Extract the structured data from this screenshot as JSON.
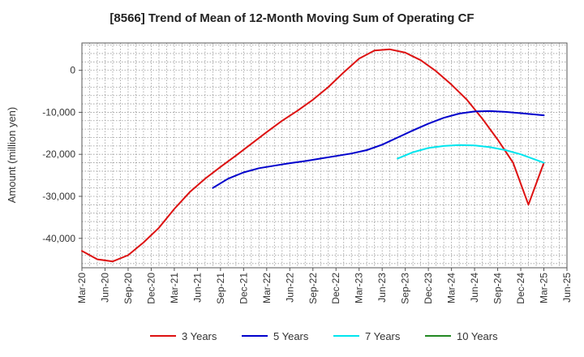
{
  "chart_data": {
    "type": "line",
    "title": "[8566]  Trend of Mean of 12-Month Moving Sum of Operating CF",
    "xlabel": "",
    "ylabel": "Amount (million yen)",
    "ylim": [
      -47000,
      6500
    ],
    "yticks": [
      0,
      -10000,
      -20000,
      -30000,
      -40000
    ],
    "ytick_labels": [
      "0",
      "-10,000",
      "-20,000",
      "-30,000",
      "-40,000"
    ],
    "xlim": [
      "Mar-20",
      "Jun-25"
    ],
    "x_tick_labels": [
      "Mar-20",
      "Jun-20",
      "Sep-20",
      "Dec-20",
      "Mar-21",
      "Jun-21",
      "Sep-21",
      "Dec-21",
      "Mar-22",
      "Jun-22",
      "Sep-22",
      "Dec-22",
      "Mar-23",
      "Jun-23",
      "Sep-23",
      "Dec-23",
      "Mar-24",
      "Jun-24",
      "Sep-24",
      "Dec-24",
      "Mar-25",
      "Jun-25"
    ],
    "grid": true,
    "legend_position": "bottom",
    "series": [
      {
        "name": "3 Years",
        "color": "#dd1111",
        "x": [
          "Mar-20",
          "May-20",
          "Jul-20",
          "Sep-20",
          "Nov-20",
          "Jan-21",
          "Mar-21",
          "May-21",
          "Jul-21",
          "Sep-21",
          "Nov-21",
          "Jan-22",
          "Mar-22",
          "May-22",
          "Jul-22",
          "Sep-22",
          "Nov-22",
          "Jan-23",
          "Mar-23",
          "May-23",
          "Jul-23",
          "Sep-23",
          "Nov-23",
          "Jan-24",
          "Mar-24",
          "May-24",
          "Jul-24",
          "Sep-24",
          "Nov-24",
          "Jan-25",
          "Mar-25"
        ],
        "values": [
          -43000,
          -45000,
          -45500,
          -44000,
          -41000,
          -37500,
          -33000,
          -29000,
          -25800,
          -23000,
          -20300,
          -17500,
          -14700,
          -12000,
          -9600,
          -7000,
          -4000,
          -500,
          2800,
          4700,
          5000,
          4200,
          2400,
          -200,
          -3400,
          -7000,
          -11500,
          -16500,
          -22000,
          -32000,
          -22000
        ]
      },
      {
        "name": "5 Years",
        "color": "#0000cc",
        "x": [
          "Aug-21",
          "Oct-21",
          "Dec-21",
          "Feb-22",
          "Apr-22",
          "Jun-22",
          "Aug-22",
          "Oct-22",
          "Dec-22",
          "Feb-23",
          "Apr-23",
          "Jun-23",
          "Aug-23",
          "Oct-23",
          "Dec-23",
          "Feb-24",
          "Apr-24",
          "Jun-24",
          "Aug-24",
          "Oct-24",
          "Dec-24",
          "Mar-25"
        ],
        "values": [
          -28000,
          -25800,
          -24300,
          -23300,
          -22700,
          -22100,
          -21600,
          -21000,
          -20400,
          -19800,
          -19000,
          -17700,
          -16000,
          -14300,
          -12700,
          -11300,
          -10300,
          -9800,
          -9700,
          -9900,
          -10200,
          -10700
        ]
      },
      {
        "name": "7 Years",
        "color": "#00e5ee",
        "x": [
          "Aug-23",
          "Oct-23",
          "Dec-23",
          "Feb-24",
          "Apr-24",
          "Jun-24",
          "Aug-24",
          "Oct-24",
          "Dec-24",
          "Mar-25"
        ],
        "values": [
          -21000,
          -19500,
          -18500,
          -18000,
          -17800,
          -17900,
          -18300,
          -19000,
          -20000,
          -22000
        ]
      },
      {
        "name": "10 Years",
        "color": "#228822",
        "x": [],
        "values": []
      }
    ]
  }
}
